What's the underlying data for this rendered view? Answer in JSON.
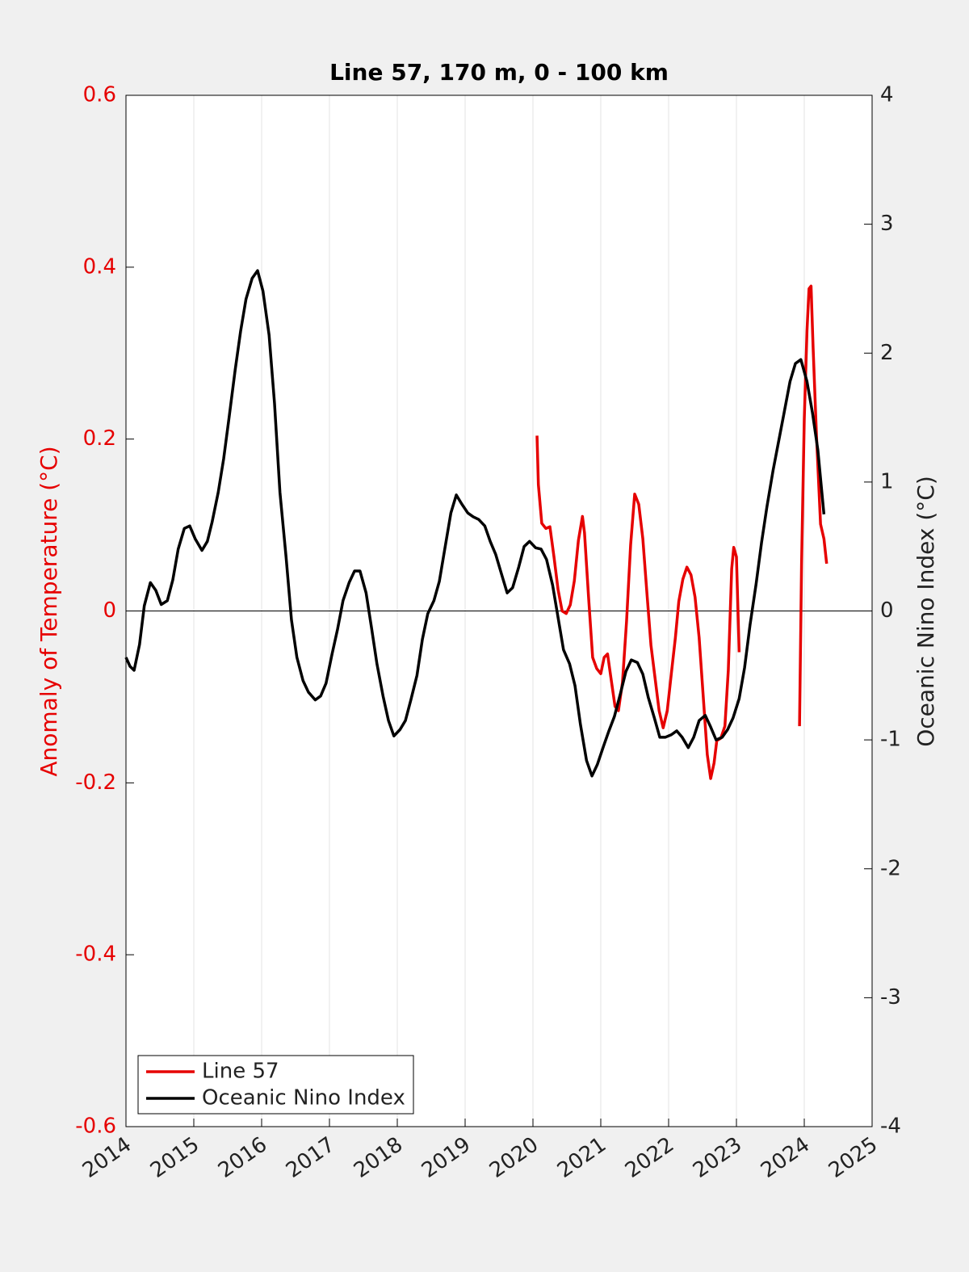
{
  "chart_data": {
    "type": "line",
    "title": "Line 57, 170 m, 0 - 100 km",
    "ylabel": "Anomaly of Temperature (°C)",
    "y2label": "Oceanic Nino Index (°C)",
    "y_axis_color": "#e60000",
    "xlim": [
      2014,
      2025
    ],
    "xticks": [
      2014,
      2015,
      2016,
      2017,
      2018,
      2019,
      2020,
      2021,
      2022,
      2023,
      2024,
      2025
    ],
    "ylim": [
      -0.6,
      0.6
    ],
    "yticks": [
      -0.6,
      -0.4,
      -0.2,
      0,
      0.2,
      0.4,
      0.6
    ],
    "y2lim": [
      -4,
      4
    ],
    "y2ticks": [
      -4,
      -3,
      -2,
      -1,
      0,
      1,
      2,
      3,
      4
    ],
    "grid": true,
    "legend": "lower left",
    "series": [
      {
        "name": "Line 57",
        "color": "#e60000",
        "x": [
          2020.06,
          2020.08,
          2020.13,
          2020.19,
          2020.25,
          2020.31,
          2020.37,
          2020.43,
          2020.49,
          2020.55,
          2020.61,
          2020.67,
          2020.73,
          2020.76,
          2020.82,
          2020.88,
          2020.94,
          2021.0,
          2021.05,
          2021.1,
          2021.15,
          2021.21,
          2021.26,
          2021.32,
          2021.38,
          2021.44,
          2021.5,
          2021.56,
          2021.62,
          2021.68,
          2021.74,
          2021.8,
          2021.86,
          2021.92,
          2021.98,
          2022.04,
          2022.1,
          2022.15,
          2022.21,
          2022.27,
          2022.33,
          2022.39,
          2022.45,
          2022.51,
          2022.57,
          2022.62,
          2022.67,
          2022.71,
          2022.77,
          2022.83,
          2022.88,
          2022.93,
          2022.96,
          2023.0,
          2023.04,
          null,
          2023.93,
          2023.96,
          2024.0,
          2024.04,
          2024.07,
          2024.1,
          2024.13,
          2024.18,
          2024.24,
          2024.29,
          2024.33
        ],
        "values": [
          0.204,
          0.147,
          0.102,
          0.096,
          0.098,
          0.063,
          0.025,
          0.0,
          -0.003,
          0.007,
          0.035,
          0.082,
          0.11,
          0.091,
          0.016,
          -0.054,
          -0.067,
          -0.073,
          -0.054,
          -0.05,
          -0.078,
          -0.111,
          -0.116,
          -0.083,
          -0.012,
          0.077,
          0.136,
          0.124,
          0.084,
          0.021,
          -0.04,
          -0.078,
          -0.116,
          -0.136,
          -0.116,
          -0.073,
          -0.031,
          0.011,
          0.037,
          0.051,
          0.042,
          0.016,
          -0.031,
          -0.099,
          -0.167,
          -0.195,
          -0.177,
          -0.151,
          -0.148,
          -0.134,
          -0.069,
          0.049,
          0.074,
          0.063,
          -0.048,
          null,
          -0.134,
          0.054,
          0.223,
          0.326,
          0.375,
          0.378,
          0.307,
          0.204,
          0.101,
          0.084,
          0.055
        ]
      },
      {
        "name": "Oceanic Nino Index",
        "color": "#000000",
        "axis": "y2",
        "x": [
          2014.0,
          2014.06,
          2014.12,
          2014.2,
          2014.27,
          2014.36,
          2014.44,
          2014.52,
          2014.61,
          2014.69,
          2014.77,
          2014.86,
          2014.94,
          2015.02,
          2015.12,
          2015.2,
          2015.27,
          2015.36,
          2015.44,
          2015.52,
          2015.61,
          2015.69,
          2015.77,
          2015.86,
          2015.94,
          2016.02,
          2016.11,
          2016.19,
          2016.27,
          2016.36,
          2016.44,
          2016.52,
          2016.61,
          2016.69,
          2016.79,
          2016.87,
          2016.95,
          2017.04,
          2017.12,
          2017.2,
          2017.29,
          2017.37,
          2017.45,
          2017.54,
          2017.62,
          2017.7,
          2017.79,
          2017.87,
          2017.95,
          2018.04,
          2018.12,
          2018.2,
          2018.29,
          2018.37,
          2018.45,
          2018.54,
          2018.62,
          2018.7,
          2018.79,
          2018.87,
          2018.95,
          2019.04,
          2019.12,
          2019.2,
          2019.29,
          2019.37,
          2019.45,
          2019.54,
          2019.62,
          2019.7,
          2019.79,
          2019.87,
          2019.95,
          2020.04,
          2020.12,
          2020.2,
          2020.29,
          2020.37,
          2020.45,
          2020.54,
          2020.62,
          2020.7,
          2020.79,
          2020.87,
          2020.95,
          2021.04,
          2021.12,
          2021.2,
          2021.29,
          2021.37,
          2021.45,
          2021.54,
          2021.62,
          2021.7,
          2021.79,
          2021.87,
          2021.95,
          2022.04,
          2022.12,
          2022.2,
          2022.29,
          2022.37,
          2022.45,
          2022.54,
          2022.62,
          2022.7,
          2022.79,
          2022.87,
          2022.95,
          2023.04,
          2023.12,
          2023.2,
          2023.29,
          2023.37,
          2023.45,
          2023.54,
          2023.62,
          2023.7,
          2023.79,
          2023.87,
          2023.95,
          2024.04,
          2024.12,
          2024.2,
          2024.29
        ],
        "values": [
          -0.36,
          -0.43,
          -0.46,
          -0.26,
          0.04,
          0.22,
          0.16,
          0.05,
          0.08,
          0.24,
          0.48,
          0.64,
          0.66,
          0.56,
          0.47,
          0.54,
          0.69,
          0.92,
          1.18,
          1.5,
          1.87,
          2.17,
          2.42,
          2.58,
          2.64,
          2.48,
          2.14,
          1.61,
          0.92,
          0.42,
          -0.07,
          -0.36,
          -0.54,
          -0.63,
          -0.69,
          -0.66,
          -0.56,
          -0.33,
          -0.14,
          0.08,
          0.22,
          0.31,
          0.31,
          0.14,
          -0.13,
          -0.41,
          -0.66,
          -0.85,
          -0.97,
          -0.92,
          -0.85,
          -0.69,
          -0.5,
          -0.22,
          -0.02,
          0.08,
          0.23,
          0.48,
          0.76,
          0.9,
          0.83,
          0.76,
          0.73,
          0.71,
          0.66,
          0.54,
          0.44,
          0.28,
          0.14,
          0.18,
          0.34,
          0.5,
          0.54,
          0.49,
          0.48,
          0.4,
          0.2,
          -0.05,
          -0.3,
          -0.41,
          -0.58,
          -0.88,
          -1.16,
          -1.28,
          -1.19,
          -1.05,
          -0.93,
          -0.82,
          -0.64,
          -0.47,
          -0.38,
          -0.4,
          -0.49,
          -0.67,
          -0.83,
          -0.98,
          -0.98,
          -0.96,
          -0.93,
          -0.98,
          -1.06,
          -0.98,
          -0.85,
          -0.81,
          -0.9,
          -1.0,
          -0.98,
          -0.92,
          -0.83,
          -0.68,
          -0.44,
          -0.11,
          0.21,
          0.53,
          0.81,
          1.09,
          1.31,
          1.53,
          1.78,
          1.92,
          1.95,
          1.78,
          1.54,
          1.25,
          0.75
        ]
      }
    ]
  }
}
